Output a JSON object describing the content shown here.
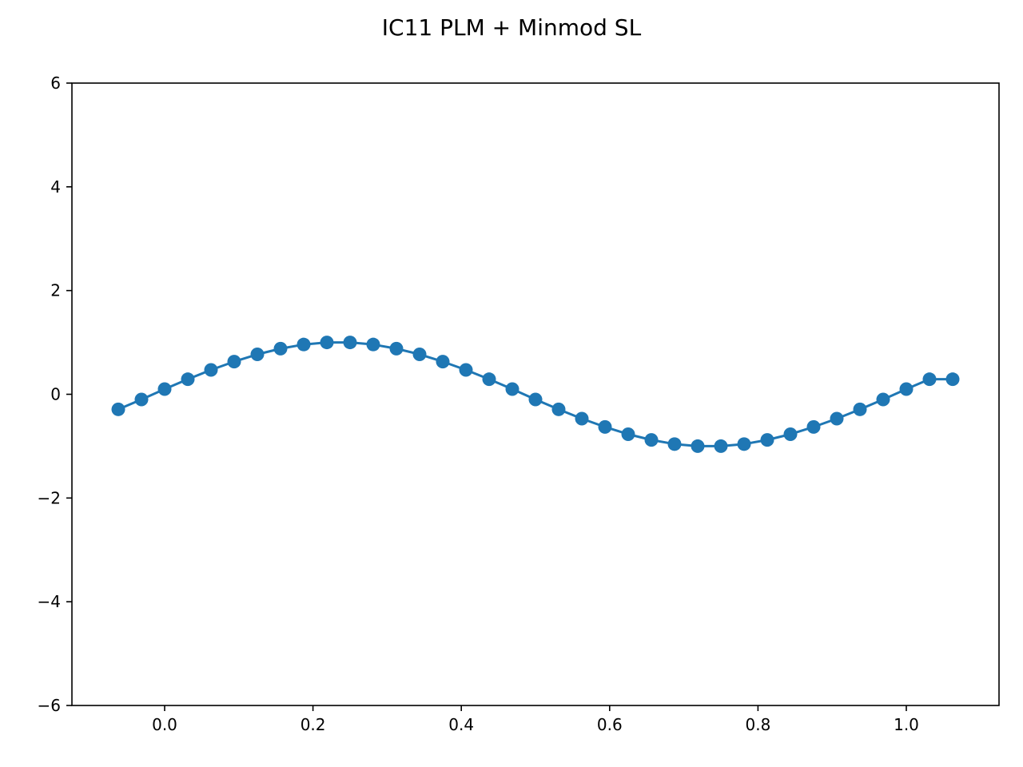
{
  "chart_data": {
    "type": "line",
    "title": "IC11 PLM + Minmod SL",
    "xlabel": "",
    "ylabel": "",
    "xlim": [
      -0.125,
      1.125
    ],
    "ylim": [
      -6,
      6
    ],
    "grid": false,
    "legend": "none",
    "color": "#1f77b4",
    "x_ticks": [
      0.0,
      0.2,
      0.4,
      0.6,
      0.8,
      1.0
    ],
    "x_tick_labels": [
      "0.0",
      "0.2",
      "0.4",
      "0.6",
      "0.8",
      "1.0"
    ],
    "y_ticks": [
      -6,
      -4,
      -2,
      0,
      2,
      4,
      6
    ],
    "y_tick_labels": [
      "−6",
      "−4",
      "−2",
      "0",
      "2",
      "4",
      "6"
    ],
    "series": [
      {
        "marker": "circle",
        "x": [
          -0.0625,
          -0.03125,
          0.0,
          0.03125,
          0.0625,
          0.09375,
          0.125,
          0.15625,
          0.1875,
          0.21875,
          0.25,
          0.28125,
          0.3125,
          0.34375,
          0.375,
          0.40625,
          0.4375,
          0.46875,
          0.5,
          0.53125,
          0.5625,
          0.59375,
          0.625,
          0.65625,
          0.6875,
          0.71875,
          0.75,
          0.78125,
          0.8125,
          0.84375,
          0.875,
          0.90625,
          0.9375,
          0.96875,
          1.0,
          1.03125,
          1.0625
        ],
        "y": [
          -0.29,
          -0.1,
          0.1,
          0.29,
          0.47,
          0.63,
          0.77,
          0.88,
          0.96,
          1.0,
          1.0,
          0.96,
          0.88,
          0.77,
          0.63,
          0.47,
          0.29,
          0.1,
          -0.1,
          -0.29,
          -0.47,
          -0.63,
          -0.77,
          -0.88,
          -0.96,
          -1.0,
          -1.0,
          -0.96,
          -0.88,
          -0.77,
          -0.63,
          -0.47,
          -0.29,
          -0.1,
          0.1,
          0.29,
          0.29
        ]
      }
    ]
  }
}
